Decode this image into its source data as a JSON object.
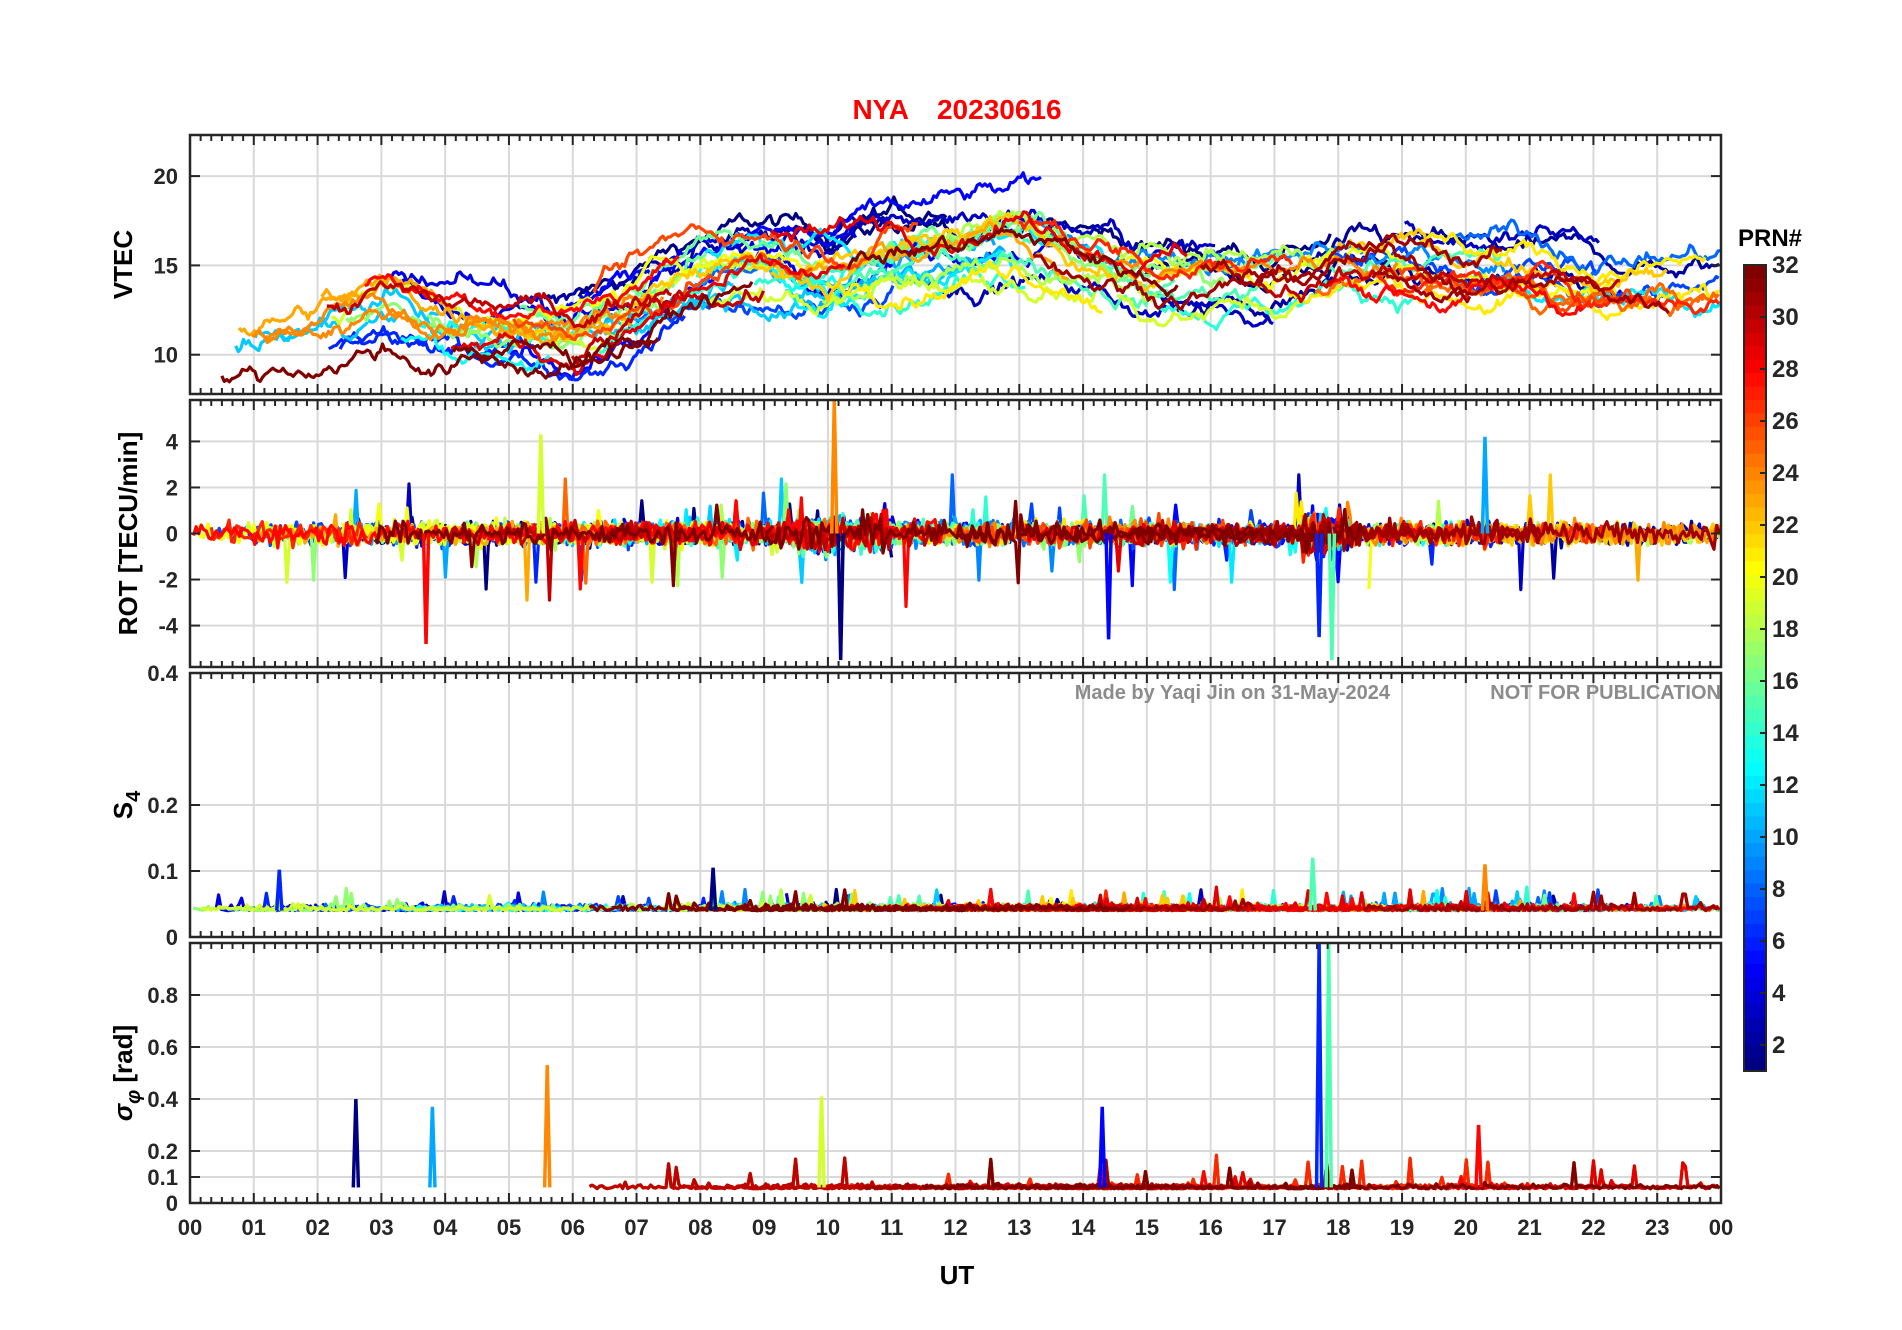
{
  "chart_data": {
    "type": "line",
    "title": {
      "station": "NYA",
      "date": "20230616"
    },
    "xlabel": "UT",
    "xlim": [
      0,
      24
    ],
    "x_ticks": [
      "00",
      "01",
      "02",
      "03",
      "04",
      "05",
      "06",
      "07",
      "08",
      "09",
      "10",
      "11",
      "12",
      "13",
      "14",
      "15",
      "16",
      "17",
      "18",
      "19",
      "20",
      "21",
      "22",
      "23",
      "00"
    ],
    "watermark": {
      "left": "Made by Yaqi Jin on 31-May-2024",
      "right": "NOT FOR PUBLICATION"
    },
    "colorbar": {
      "label": "PRN#",
      "range": [
        1,
        32
      ],
      "ticks": [
        "2",
        "4",
        "6",
        "8",
        "10",
        "12",
        "14",
        "16",
        "18",
        "20",
        "22",
        "24",
        "26",
        "28",
        "30",
        "32"
      ]
    },
    "panels": [
      {
        "name": "vtec",
        "ylabel": "VTEC",
        "ylim": [
          7.8,
          22.3
        ],
        "yticks": [
          "10",
          "15",
          "20"
        ],
        "ytick_values": [
          10,
          15,
          20
        ],
        "trend": [
          [
            0,
            11
          ],
          [
            1,
            10.5
          ],
          [
            2,
            11.5
          ],
          [
            3,
            12.5
          ],
          [
            4,
            11.5
          ],
          [
            5,
            11.5
          ],
          [
            6,
            11
          ],
          [
            7,
            12.5
          ],
          [
            8,
            14.5
          ],
          [
            9,
            15
          ],
          [
            10,
            14.5
          ],
          [
            11,
            15.5
          ],
          [
            12,
            16
          ],
          [
            13,
            16.5
          ],
          [
            14,
            15.5
          ],
          [
            15,
            14.5
          ],
          [
            16,
            14.5
          ],
          [
            17,
            14.5
          ],
          [
            18,
            15.5
          ],
          [
            19,
            15.5
          ],
          [
            20,
            15
          ],
          [
            21,
            15
          ],
          [
            22,
            14.5
          ],
          [
            23,
            14.5
          ],
          [
            24,
            14.5
          ]
        ]
      },
      {
        "name": "rot",
        "ylabel": "ROT [TECU/min]",
        "ylim": [
          -5.8,
          5.8
        ],
        "yticks": [
          "-4",
          "-2",
          "0",
          "2",
          "4"
        ],
        "ytick_values": [
          -4,
          -2,
          0,
          2,
          4
        ],
        "events": [
          [
            17.7,
            -4.5
          ],
          [
            17.9,
            -5.5
          ],
          [
            10.1,
            5.8
          ],
          [
            10.2,
            -5.5
          ],
          [
            20.3,
            4.2
          ],
          [
            5.5,
            4.3
          ],
          [
            3.7,
            -4.8
          ],
          [
            14.4,
            -4.6
          ]
        ]
      },
      {
        "name": "s4",
        "ylabel": "S4",
        "ylim": [
          0,
          0.4
        ],
        "yticks": [
          "0",
          "0.1",
          "0.2",
          "0.4"
        ],
        "ytick_values": [
          0,
          0.1,
          0.2,
          0.4
        ],
        "events": [
          [
            1.4,
            0.102
          ],
          [
            17.6,
            0.12
          ],
          [
            20.3,
            0.11
          ],
          [
            8.2,
            0.105
          ]
        ]
      },
      {
        "name": "sigma_phi",
        "ylabel": "σφ [rad]",
        "ylim": [
          0,
          1.0
        ],
        "yticks": [
          "0",
          "0.1",
          "0.2",
          "0.4",
          "0.6",
          "0.8"
        ],
        "ytick_values": [
          0,
          0.1,
          0.2,
          0.4,
          0.6,
          0.8
        ],
        "events": [
          [
            17.7,
            1.0
          ],
          [
            17.85,
            1.0
          ],
          [
            5.6,
            0.53
          ],
          [
            2.6,
            0.4
          ],
          [
            3.8,
            0.37
          ],
          [
            9.9,
            0.41
          ],
          [
            20.2,
            0.3
          ],
          [
            14.3,
            0.37
          ]
        ]
      }
    ]
  }
}
